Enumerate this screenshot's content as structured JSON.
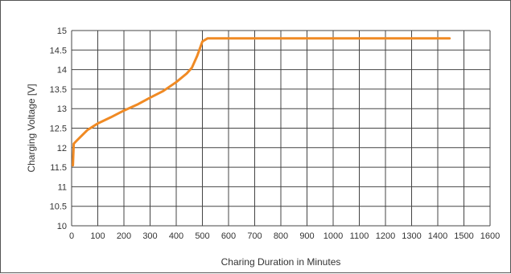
{
  "chart_data": {
    "type": "line",
    "title": "",
    "xlabel": "Charing Duration in Minutes",
    "ylabel": "Charging Voltage [V]",
    "xlim": [
      0,
      1600
    ],
    "ylim": [
      10,
      15
    ],
    "x_ticks": [
      "0",
      "100",
      "200",
      "300",
      "400",
      "500",
      "600",
      "700",
      "800",
      "900",
      "1000",
      "1100",
      "1200",
      "1300",
      "1400",
      "1500",
      "1600"
    ],
    "y_ticks": [
      "10",
      "10.5",
      "11",
      "11.5",
      "12",
      "12.5",
      "13",
      "13.5",
      "14",
      "14.5",
      "15"
    ],
    "x_tick_values": [
      0,
      100,
      200,
      300,
      400,
      500,
      600,
      700,
      800,
      900,
      1000,
      1100,
      1200,
      1300,
      1400,
      1500,
      1600
    ],
    "y_tick_values": [
      10,
      10.5,
      11,
      11.5,
      12,
      12.5,
      13,
      13.5,
      14,
      14.5,
      15
    ],
    "grid": true,
    "line_color": "#f08a24",
    "series": [
      {
        "x": [
          5,
          8,
          15,
          30,
          60,
          100,
          150,
          200,
          250,
          300,
          350,
          400,
          440,
          460,
          480,
          500,
          520,
          700,
          1000,
          1300,
          1445
        ],
        "y": [
          11.55,
          12.1,
          12.15,
          12.25,
          12.45,
          12.62,
          12.78,
          12.95,
          13.1,
          13.28,
          13.45,
          13.68,
          13.9,
          14.05,
          14.35,
          14.72,
          14.8,
          14.8,
          14.8,
          14.8,
          14.8
        ]
      }
    ]
  }
}
